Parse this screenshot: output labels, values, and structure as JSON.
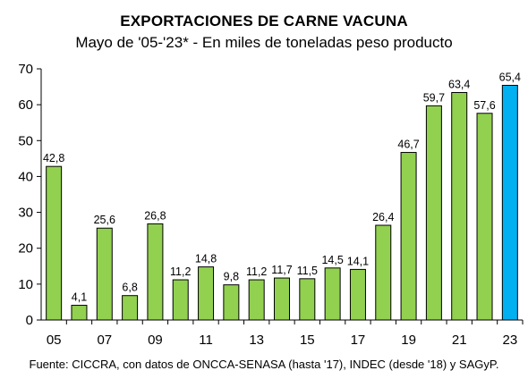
{
  "chart_data": {
    "type": "bar",
    "title": "EXPORTACIONES DE CARNE VACUNA",
    "subtitle": "Mayo de '05-'23* - En miles de toneladas peso producto",
    "source": "Fuente: CICCRA, con datos de ONCCA-SENASA (hasta '17), INDEC (desde '18) y SAGyP.",
    "categories": [
      "05",
      "06",
      "07",
      "08",
      "09",
      "10",
      "11",
      "12",
      "13",
      "14",
      "15",
      "16",
      "17",
      "18",
      "19",
      "20",
      "21",
      "22",
      "23"
    ],
    "x_tick_labels": [
      "05",
      "",
      "07",
      "",
      "09",
      "",
      "11",
      "",
      "13",
      "",
      "15",
      "",
      "17",
      "",
      "19",
      "",
      "21",
      "",
      "23"
    ],
    "values": [
      42.8,
      4.1,
      25.6,
      6.8,
      26.8,
      11.2,
      14.8,
      9.8,
      11.2,
      11.7,
      11.5,
      14.5,
      14.1,
      26.4,
      46.7,
      59.7,
      63.4,
      57.6,
      65.4
    ],
    "data_labels": [
      "42,8",
      "4,1",
      "25,6",
      "6,8",
      "26,8",
      "11,2",
      "14,8",
      "9,8",
      "11,2",
      "11,7",
      "11,5",
      "14,5",
      "14,1",
      "26,4",
      "46,7",
      "59,7",
      "63,4",
      "57,6",
      "65,4"
    ],
    "ylim": [
      0,
      70
    ],
    "y_ticks": [
      0,
      10,
      20,
      30,
      40,
      50,
      60,
      70
    ],
    "grid": false,
    "colors": {
      "bar": "#92D050",
      "highlight": "#00B0F0",
      "border": "#000000"
    },
    "highlight_index": 18
  }
}
